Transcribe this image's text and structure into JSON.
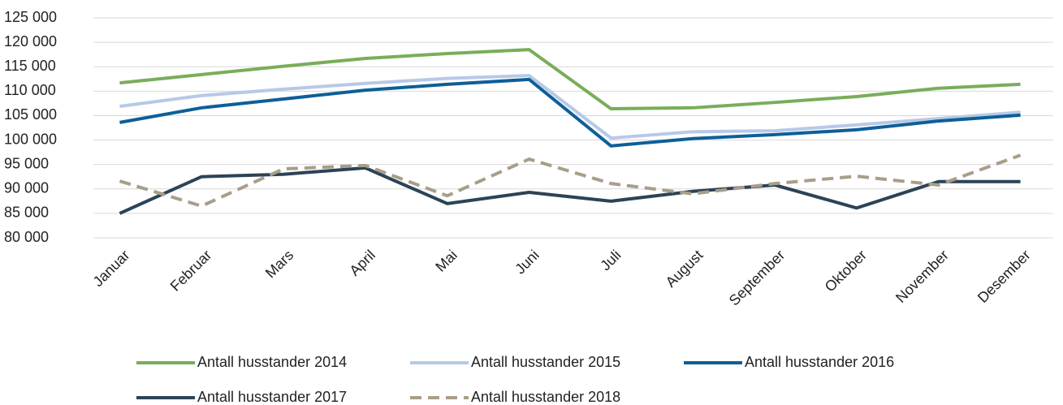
{
  "chart_data": {
    "type": "line",
    "categories": [
      "Januar",
      "Februar",
      "Mars",
      "April",
      "Mai",
      "Juni",
      "Juli",
      "August",
      "September",
      "Oktober",
      "November",
      "Desember"
    ],
    "series": [
      {
        "name": "Antall husstander 2014",
        "color": "#79ad5b",
        "values": [
          111700,
          113400,
          115100,
          116700,
          117700,
          118500,
          106400,
          106600,
          107700,
          108900,
          110600,
          111400
        ]
      },
      {
        "name": "Antall husstander 2015",
        "color": "#b7c9e8",
        "values": [
          106900,
          109100,
          110400,
          111600,
          112600,
          113200,
          100400,
          101700,
          101900,
          103100,
          104400,
          105700
        ]
      },
      {
        "name": "Antall husstander 2016",
        "color": "#0d5f98",
        "values": [
          103600,
          106600,
          108400,
          110200,
          111400,
          112400,
          98800,
          100300,
          101100,
          102100,
          103900,
          105100
        ]
      },
      {
        "name": "Antall husstander 2017",
        "color": "#2c4356",
        "values": [
          85000,
          92500,
          93000,
          94300,
          87000,
          89300,
          87500,
          89500,
          90800,
          86100,
          91500,
          91500
        ]
      },
      {
        "name": "Antall husstander 2018",
        "color": "#a89e89",
        "dashed": true,
        "values": [
          91600,
          86500,
          94100,
          94800,
          88600,
          96100,
          91100,
          89000,
          91100,
          92600,
          90800,
          96900
        ]
      }
    ],
    "ylim": [
      80000,
      125000
    ],
    "yticks": [
      {
        "value": 80000,
        "label": "80 000"
      },
      {
        "value": 85000,
        "label": "85 000"
      },
      {
        "value": 90000,
        "label": "90 000"
      },
      {
        "value": 95000,
        "label": "95 000"
      },
      {
        "value": 100000,
        "label": "100 000"
      },
      {
        "value": 105000,
        "label": "105 000"
      },
      {
        "value": 110000,
        "label": "110 000"
      },
      {
        "value": 115000,
        "label": "115 000"
      },
      {
        "value": 120000,
        "label": "120 000"
      },
      {
        "value": 125000,
        "label": "125 000"
      }
    ],
    "grid": true
  }
}
